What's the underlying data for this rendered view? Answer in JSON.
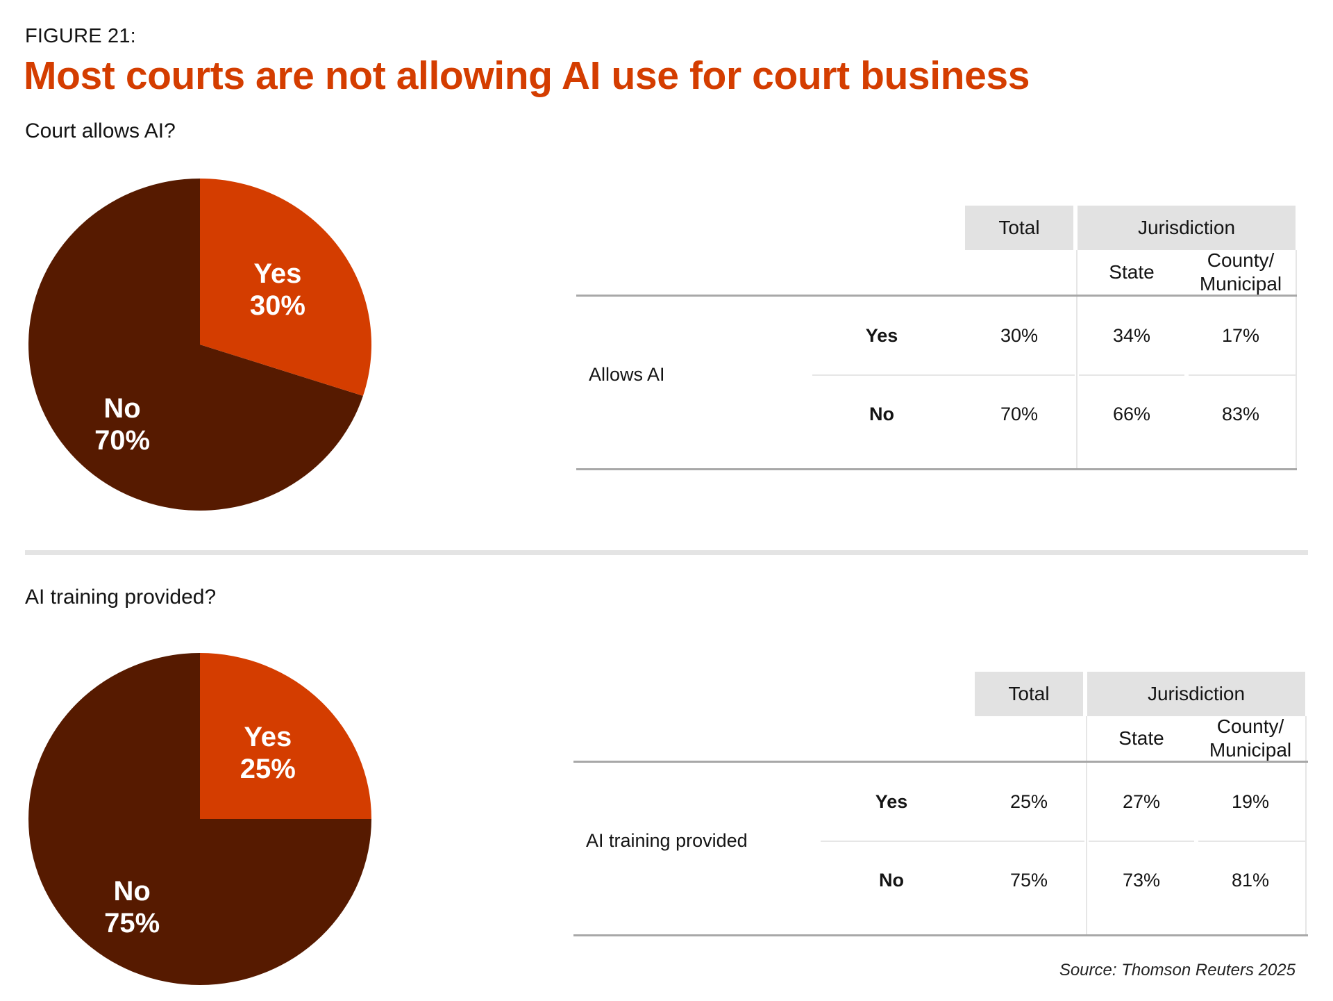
{
  "header": {
    "figure_label": "FIGURE 21:",
    "title": "Most courts are not allowing AI use for court business"
  },
  "colors": {
    "accent": "#d43d00",
    "dark": "#561a00",
    "header_bg": "#e2e2e2"
  },
  "sections": [
    {
      "title": "Court allows AI?",
      "pie": {
        "yes_label": "Yes",
        "yes_pct": "30%",
        "no_label": "No",
        "no_pct": "70%"
      },
      "table": {
        "col_total": "Total",
        "col_jurisdiction": "Jurisdiction",
        "col_state": "State",
        "col_county": "County/\nMunicipal",
        "group_label": "Allows AI",
        "rows": [
          {
            "label": "Yes",
            "total": "30%",
            "state": "34%",
            "county": "17%"
          },
          {
            "label": "No",
            "total": "70%",
            "state": "66%",
            "county": "83%"
          }
        ]
      }
    },
    {
      "title": "AI training provided?",
      "pie": {
        "yes_label": "Yes",
        "yes_pct": "25%",
        "no_label": "No",
        "no_pct": "75%"
      },
      "table": {
        "col_total": "Total",
        "col_jurisdiction": "Jurisdiction",
        "col_state": "State",
        "col_county": "County/\nMunicipal",
        "group_label": "AI training provided",
        "rows": [
          {
            "label": "Yes",
            "total": "25%",
            "state": "27%",
            "county": "19%"
          },
          {
            "label": "No",
            "total": "75%",
            "state": "73%",
            "county": "81%"
          }
        ]
      }
    }
  ],
  "source": "Source: Thomson Reuters 2025",
  "chart_data": [
    {
      "type": "pie",
      "title": "Court allows AI?",
      "categories": [
        "Yes",
        "No"
      ],
      "values": [
        30,
        70
      ],
      "colors": [
        "#d43d00",
        "#561a00"
      ]
    },
    {
      "type": "table",
      "title": "Court allows AI?",
      "columns": [
        "Total",
        "State",
        "County/Municipal"
      ],
      "column_groups": {
        "Jurisdiction": [
          "State",
          "County/Municipal"
        ]
      },
      "row_group": "Allows AI",
      "rows": [
        {
          "label": "Yes",
          "values": [
            30,
            34,
            17
          ]
        },
        {
          "label": "No",
          "values": [
            70,
            66,
            83
          ]
        }
      ],
      "unit": "%"
    },
    {
      "type": "pie",
      "title": "AI training provided?",
      "categories": [
        "Yes",
        "No"
      ],
      "values": [
        25,
        75
      ],
      "colors": [
        "#d43d00",
        "#561a00"
      ]
    },
    {
      "type": "table",
      "title": "AI training provided?",
      "columns": [
        "Total",
        "State",
        "County/Municipal"
      ],
      "column_groups": {
        "Jurisdiction": [
          "State",
          "County/Municipal"
        ]
      },
      "row_group": "AI training provided",
      "rows": [
        {
          "label": "Yes",
          "values": [
            25,
            27,
            19
          ]
        },
        {
          "label": "No",
          "values": [
            75,
            73,
            81
          ]
        }
      ],
      "unit": "%"
    }
  ]
}
